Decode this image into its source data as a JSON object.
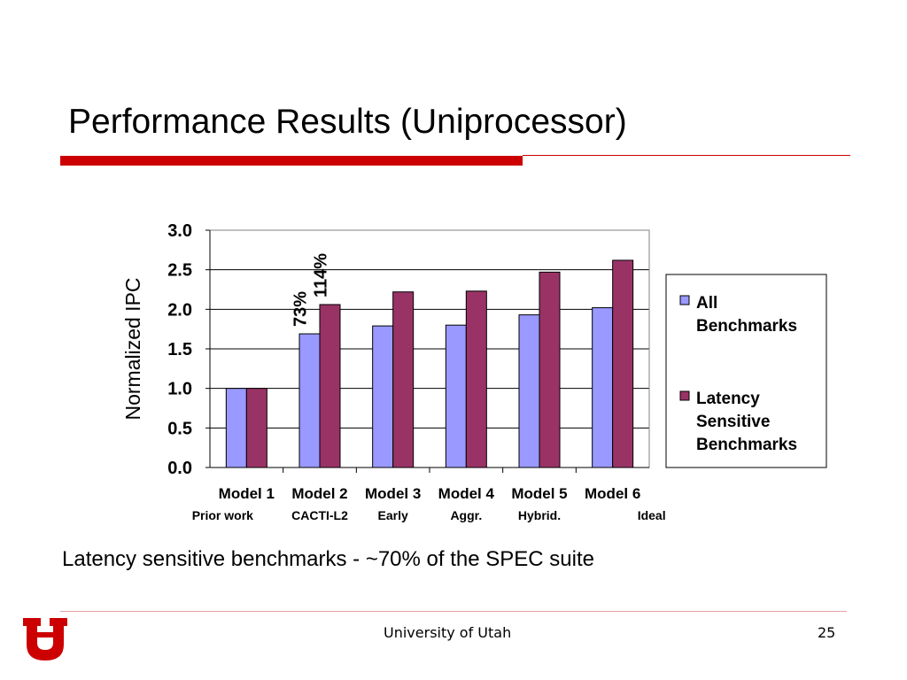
{
  "slide": {
    "title": "Performance Results (Uniprocessor)",
    "subtitle": "Latency sensitive benchmarks - ~70% of the SPEC suite",
    "footer": "University of Utah",
    "page_number": "25",
    "logo_text": "U"
  },
  "colors": {
    "accent_red": "#cc0000",
    "series_all": "#9999ff",
    "series_latency": "#993366",
    "plot_border": "#808080",
    "gridline": "#000000"
  },
  "chart_data": {
    "type": "bar",
    "categories": [
      "Model 1",
      "Model 2",
      "Model 3",
      "Model 4",
      "Model 5",
      "Model 6"
    ],
    "sublabels": [
      "Prior work",
      "CACTI-L2",
      "Early",
      "Aggr.",
      "Hybrid.",
      "Ideal"
    ],
    "series": [
      {
        "name": "All Benchmarks",
        "name_lines": [
          "All",
          "Benchmarks"
        ],
        "values": [
          1.0,
          1.69,
          1.79,
          1.8,
          1.93,
          2.02
        ]
      },
      {
        "name": "Latency Sensitive Benchmarks",
        "name_lines": [
          "Latency",
          "Sensitive",
          "Benchmarks"
        ],
        "values": [
          1.0,
          2.06,
          2.22,
          2.23,
          2.47,
          2.62
        ]
      }
    ],
    "ylabel": "Normalized IPC",
    "ylim": [
      0,
      3.0
    ],
    "yticks": [
      "0.0",
      "0.5",
      "1.0",
      "1.5",
      "2.0",
      "2.5",
      "3.0"
    ],
    "grid": true,
    "legend_position": "right",
    "annotations": [
      {
        "text": "73%",
        "category_index": 1,
        "series_index": 0
      },
      {
        "text": "114%",
        "category_index": 1,
        "series_index": 1
      }
    ]
  }
}
